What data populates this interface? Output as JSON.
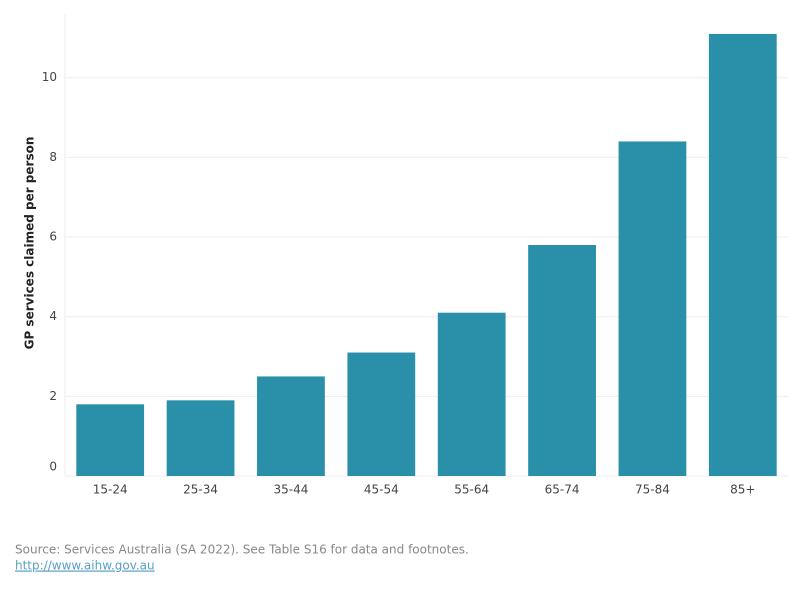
{
  "chart_data": {
    "type": "bar",
    "y_label": "GP services claimed per person",
    "categories": [
      "15-24",
      "25-34",
      "35-44",
      "45-54",
      "55-64",
      "65-74",
      "75-84",
      "85+"
    ],
    "values": [
      1.8,
      1.9,
      2.5,
      3.1,
      4.1,
      5.8,
      8.4,
      11.1
    ],
    "color": "#2a8fa8",
    "ylim": [
      0,
      11.6
    ],
    "yticks": [
      0,
      2,
      4,
      6,
      8,
      10
    ],
    "grid": true,
    "source": "Source: Services Australia (SA 2022). See Table S16 for data and footnotes.",
    "link": "http://www.aihw.gov.au"
  }
}
